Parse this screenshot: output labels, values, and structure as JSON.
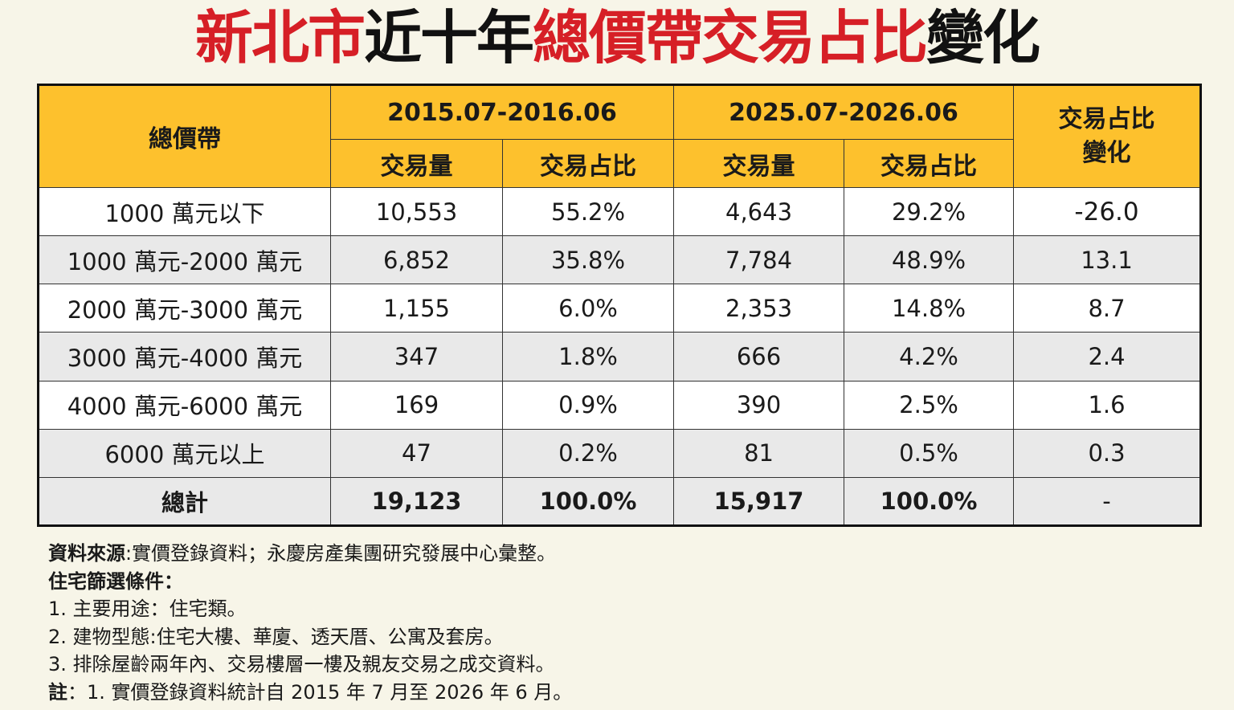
{
  "title": {
    "part1": "新北市",
    "part2": "近十年",
    "part3": "總價帶交易占比",
    "part4": "變化"
  },
  "colors": {
    "header_bg": "#fdc12d",
    "title_red": "#d61f26",
    "title_black": "#111111",
    "row_gray": "#e9e9e9"
  },
  "chart_data": {
    "type": "table",
    "headers": {
      "band": "總價帶",
      "period1": "2015.07-2016.06",
      "period2": "2025.07-2026.06",
      "volume": "交易量",
      "share": "交易占比",
      "change": "交易占比變化"
    },
    "rows": [
      {
        "band": "1000 萬元以下",
        "v1": "10,553",
        "s1": "55.2%",
        "v2": "4,643",
        "s2": "29.2%",
        "change": "-26.0"
      },
      {
        "band": "1000 萬元-2000 萬元",
        "v1": "6,852",
        "s1": "35.8%",
        "v2": "7,784",
        "s2": "48.9%",
        "change": "13.1"
      },
      {
        "band": "2000 萬元-3000 萬元",
        "v1": "1,155",
        "s1": "6.0%",
        "v2": "2,353",
        "s2": "14.8%",
        "change": "8.7"
      },
      {
        "band": "3000 萬元-4000 萬元",
        "v1": "347",
        "s1": "1.8%",
        "v2": "666",
        "s2": "4.2%",
        "change": "2.4"
      },
      {
        "band": "4000 萬元-6000 萬元",
        "v1": "169",
        "s1": "0.9%",
        "v2": "390",
        "s2": "2.5%",
        "change": "1.6"
      },
      {
        "band": "6000 萬元以上",
        "v1": "47",
        "s1": "0.2%",
        "v2": "81",
        "s2": "0.5%",
        "change": "0.3"
      }
    ],
    "total": {
      "band": "總計",
      "v1": "19,123",
      "s1": "100.0%",
      "v2": "15,917",
      "s2": "100.0%",
      "change": "-"
    }
  },
  "notes": {
    "source_label": "資料來源",
    "source_text": ":實價登錄資料；永慶房產集團研究發展中心彙整。",
    "filter_label": "住宅篩選條件：",
    "item1": "1. 主要用途：住宅類。",
    "item2": "2. 建物型態:住宅大樓、華廈、透天厝、公寓及套房。",
    "item3": "3. 排除屋齡兩年內、交易樓層一樓及親友交易之成交資料。",
    "note_label": "註",
    "note_text": "：1. 實價登錄資料統計自 2015 年 7 月至 2026 年 6 月。"
  }
}
